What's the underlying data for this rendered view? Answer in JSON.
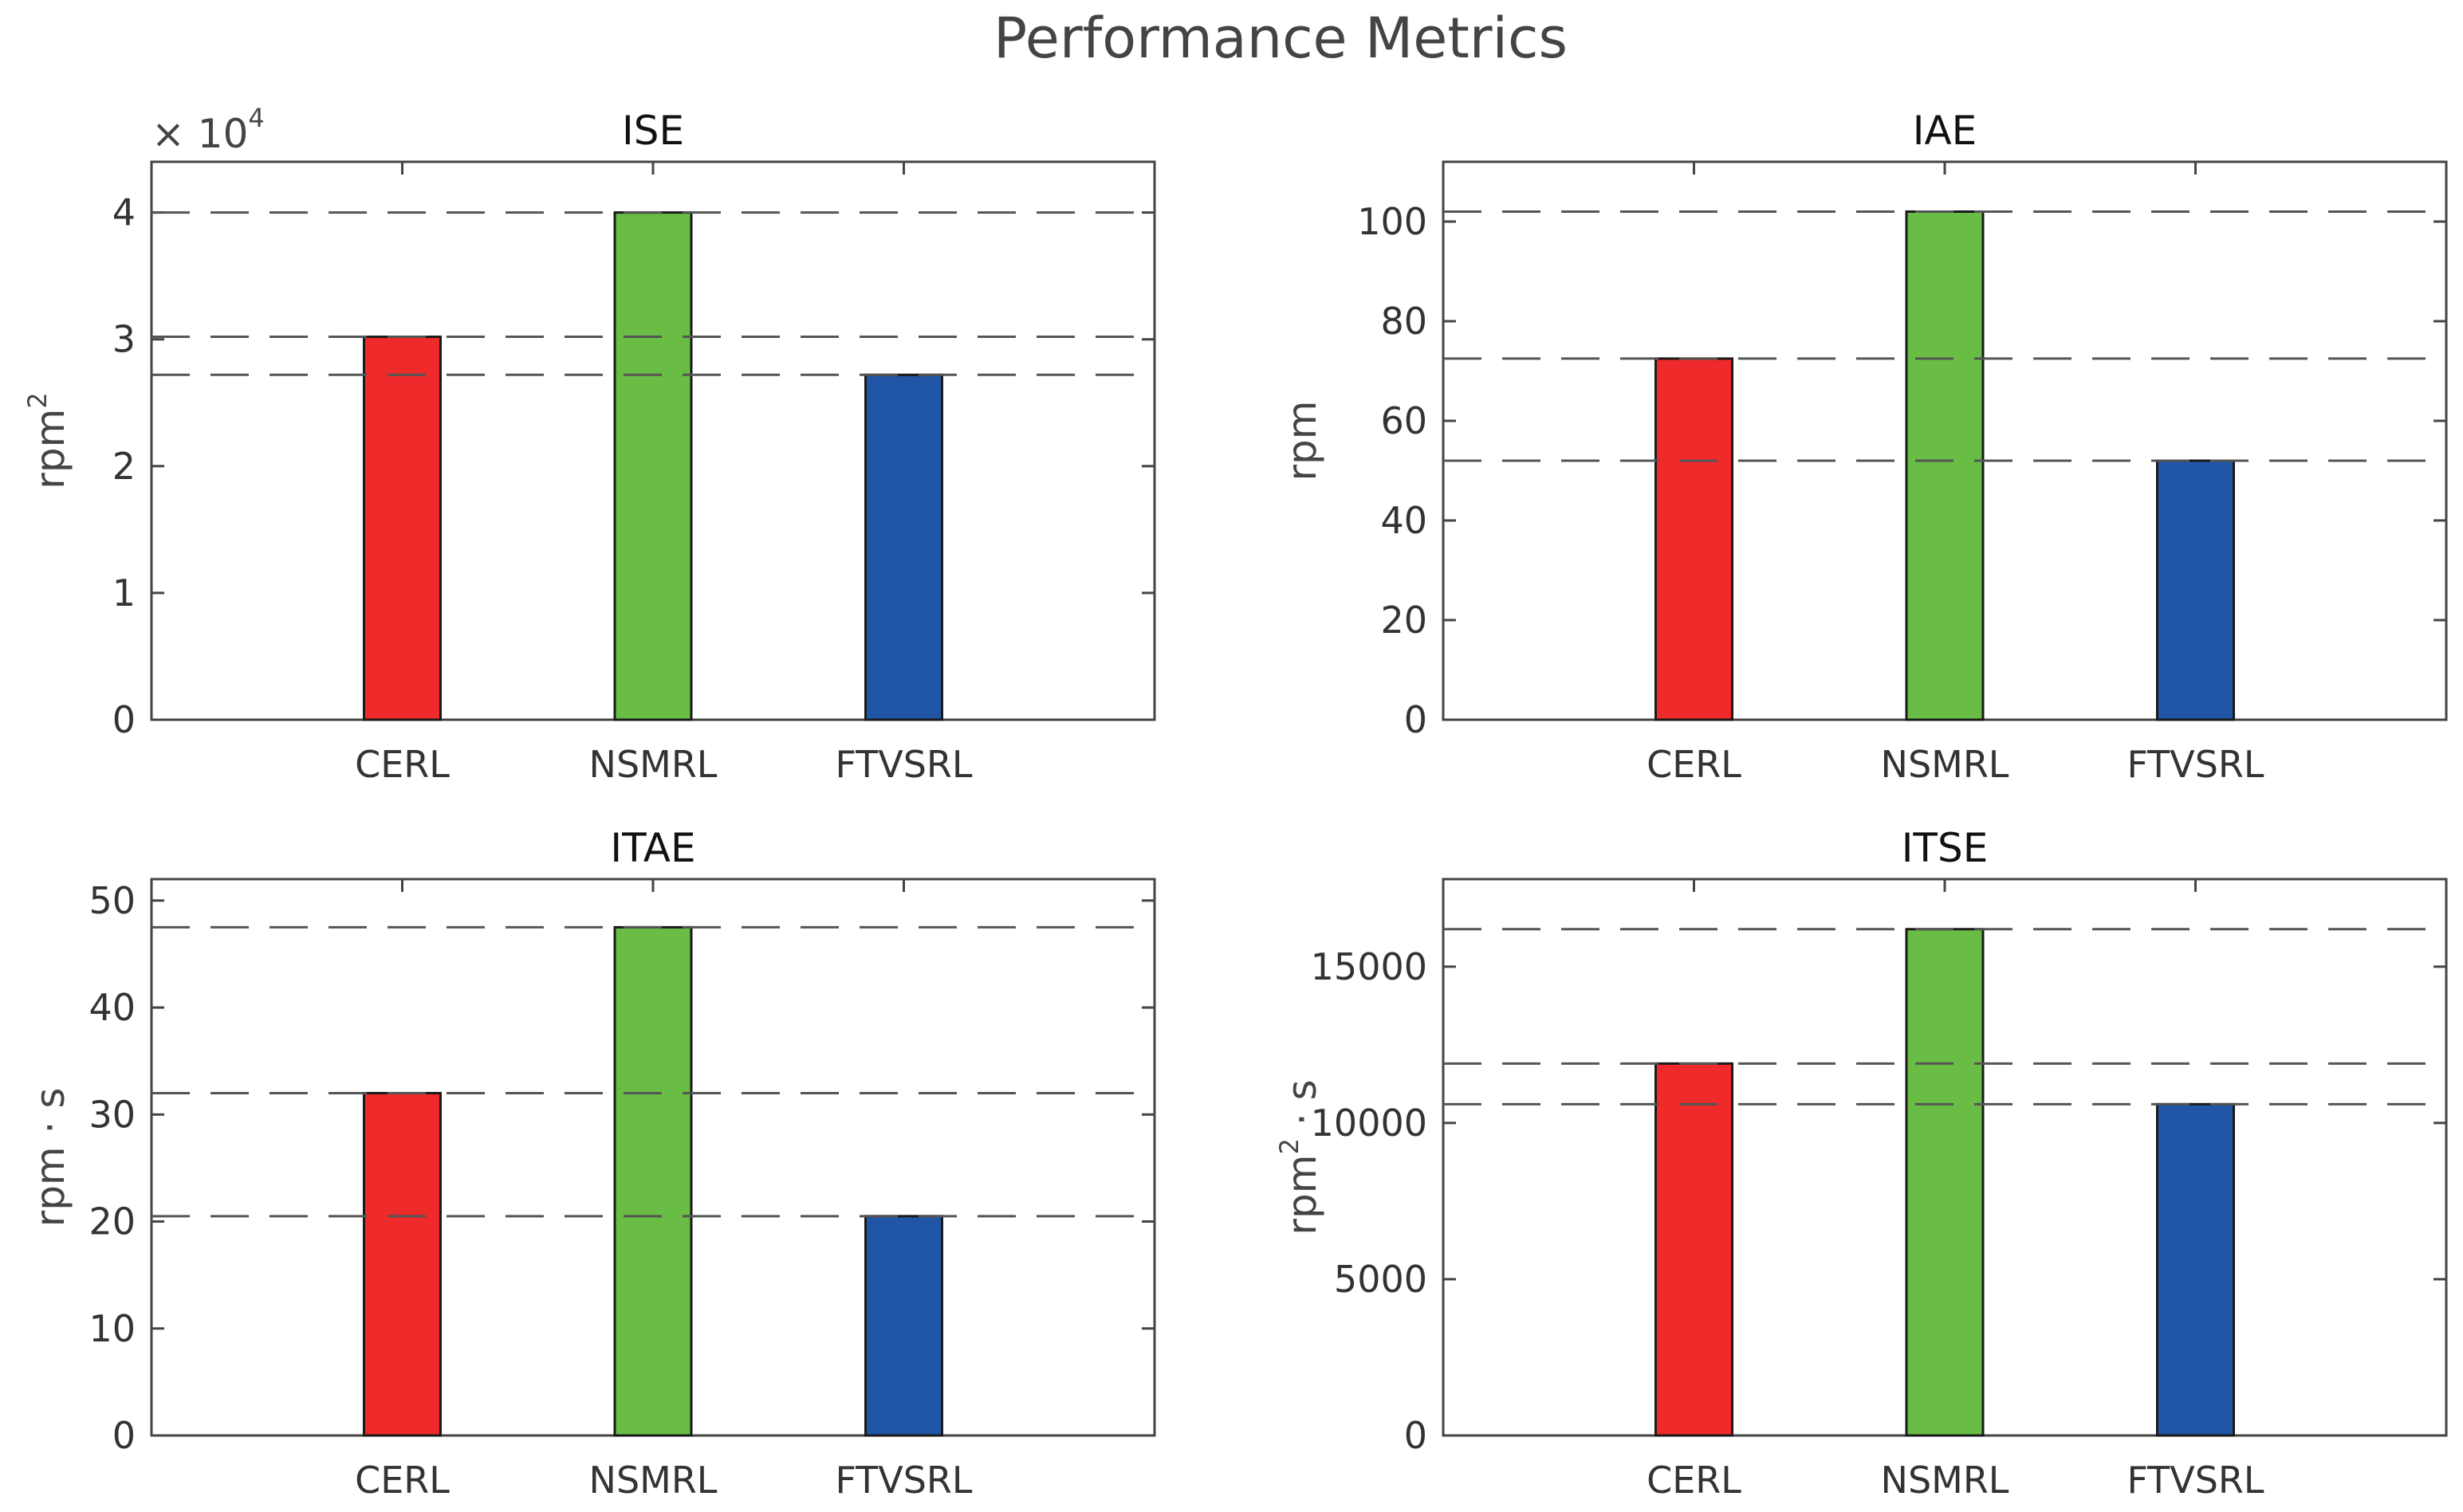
{
  "suptitle": "Performance Metrics",
  "colors": {
    "CERL": "#ee2a2b",
    "NSMRL": "#69bd45",
    "FTVSRL": "#2155a5",
    "axis": "#444444",
    "ref_line": "#555555"
  },
  "chart_data": [
    {
      "type": "bar",
      "title": "ISE",
      "categories": [
        "CERL",
        "NSMRL",
        "FTVSRL"
      ],
      "values": [
        30200,
        40000,
        27200
      ],
      "ylim": [
        0,
        44000
      ],
      "yticks": [
        0,
        10000,
        20000,
        30000,
        40000
      ],
      "ytick_labels": [
        "0",
        "1",
        "2",
        "3",
        "4"
      ],
      "exponent_label": "× 10",
      "exponent_power": "4",
      "ylabel": "rpm",
      "ylabel_sup": "2",
      "ylabel_suffix": "",
      "reference_lines": true
    },
    {
      "type": "bar",
      "title": "IAE",
      "categories": [
        "CERL",
        "NSMRL",
        "FTVSRL"
      ],
      "values": [
        72.5,
        102,
        52
      ],
      "ylim": [
        0,
        112
      ],
      "yticks": [
        0,
        20,
        40,
        60,
        80,
        100
      ],
      "ytick_labels": [
        "0",
        "20",
        "40",
        "60",
        "80",
        "100"
      ],
      "ylabel": "rpm",
      "ylabel_sup": "",
      "ylabel_suffix": "",
      "reference_lines": true
    },
    {
      "type": "bar",
      "title": "ITAE",
      "categories": [
        "CERL",
        "NSMRL",
        "FTVSRL"
      ],
      "values": [
        32,
        47.5,
        20.5
      ],
      "ylim": [
        0,
        52
      ],
      "yticks": [
        0,
        10,
        20,
        30,
        40,
        50
      ],
      "ytick_labels": [
        "0",
        "10",
        "20",
        "30",
        "40",
        "50"
      ],
      "ylabel": "rpm · s",
      "ylabel_sup": "",
      "ylabel_suffix": "",
      "reference_lines": true
    },
    {
      "type": "bar",
      "title": "ITSE",
      "categories": [
        "CERL",
        "NSMRL",
        "FTVSRL"
      ],
      "values": [
        11900,
        16200,
        10600
      ],
      "ylim": [
        0,
        17800
      ],
      "yticks": [
        0,
        5000,
        10000,
        15000
      ],
      "ytick_labels": [
        "0",
        "5000",
        "10000",
        "15000"
      ],
      "ylabel": "rpm",
      "ylabel_sup": "2",
      "ylabel_suffix": " · s",
      "reference_lines": true
    }
  ]
}
